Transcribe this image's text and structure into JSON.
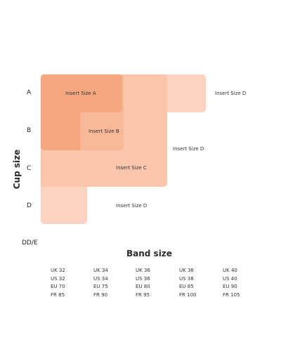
{
  "axes": {
    "y_label": "Cup size",
    "x_label": "Band size"
  },
  "cup_rows": [
    "A",
    "B",
    "C",
    "D",
    "DD/E"
  ],
  "size_labels": {
    "a": "Insert Size A",
    "b": "Insert Size B",
    "c": "Insert Size C",
    "d_row_a": "Insert Size D",
    "d_row_b": "Insert Size D",
    "d_row_d": "Insert Size D"
  },
  "band_columns": [
    {
      "uk": "UK 32",
      "us": "US 32",
      "eu": "EU 70",
      "fr": "FR 85"
    },
    {
      "uk": "UK 34",
      "us": "US 34",
      "eu": "EU 75",
      "fr": "FR 90"
    },
    {
      "uk": "UK 36",
      "us": "US 36",
      "eu": "EU 80",
      "fr": "FR 95"
    },
    {
      "uk": "UK 38",
      "us": "US 38",
      "eu": "EU 85",
      "fr": "FR 100"
    },
    {
      "uk": "UK 40",
      "us": "US 40",
      "eu": "EU 90",
      "fr": "FR 105"
    }
  ],
  "colors": {
    "size_a": "#f5a880",
    "size_b": "#f8b898",
    "size_c": "#fbc6ac",
    "size_d": "#fcd3c0"
  }
}
